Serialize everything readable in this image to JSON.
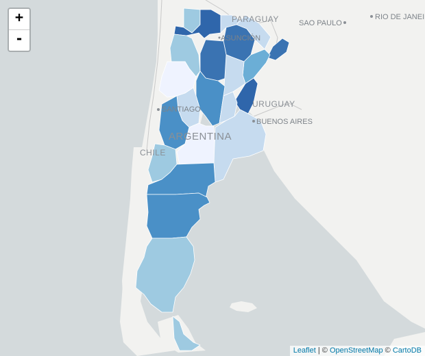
{
  "zoom": {
    "in_label": "+",
    "out_label": "-"
  },
  "labels": {
    "paraguay": "PARAGUAY",
    "asuncion": "ASUNCIÓN",
    "uruguay": "URUGUAY",
    "chile": "CHILE",
    "argentina": "ARGENTINA",
    "santiago": "SANTIAGO",
    "buenos_aires": "BUENOS AIRES",
    "sao_paulo": "SAO PAULO",
    "rio": "RIO DE JANEIRO"
  },
  "attribution": {
    "leaflet": "Leaflet",
    "sep": " | © ",
    "osm": "OpenStreetMap",
    "sep2": " © ",
    "carto": "CartoDB"
  },
  "colors": {
    "water": "#d4dadc",
    "land": "#f2f2f0",
    "border": "#c8c8c8",
    "class_1": "#eff3ff",
    "class_2": "#c6dbef",
    "class_3": "#9ecae1",
    "class_4": "#6baed6",
    "class_5": "#4a90c7",
    "class_6": "#3a73b2",
    "class_7": "#2f66ab"
  }
}
